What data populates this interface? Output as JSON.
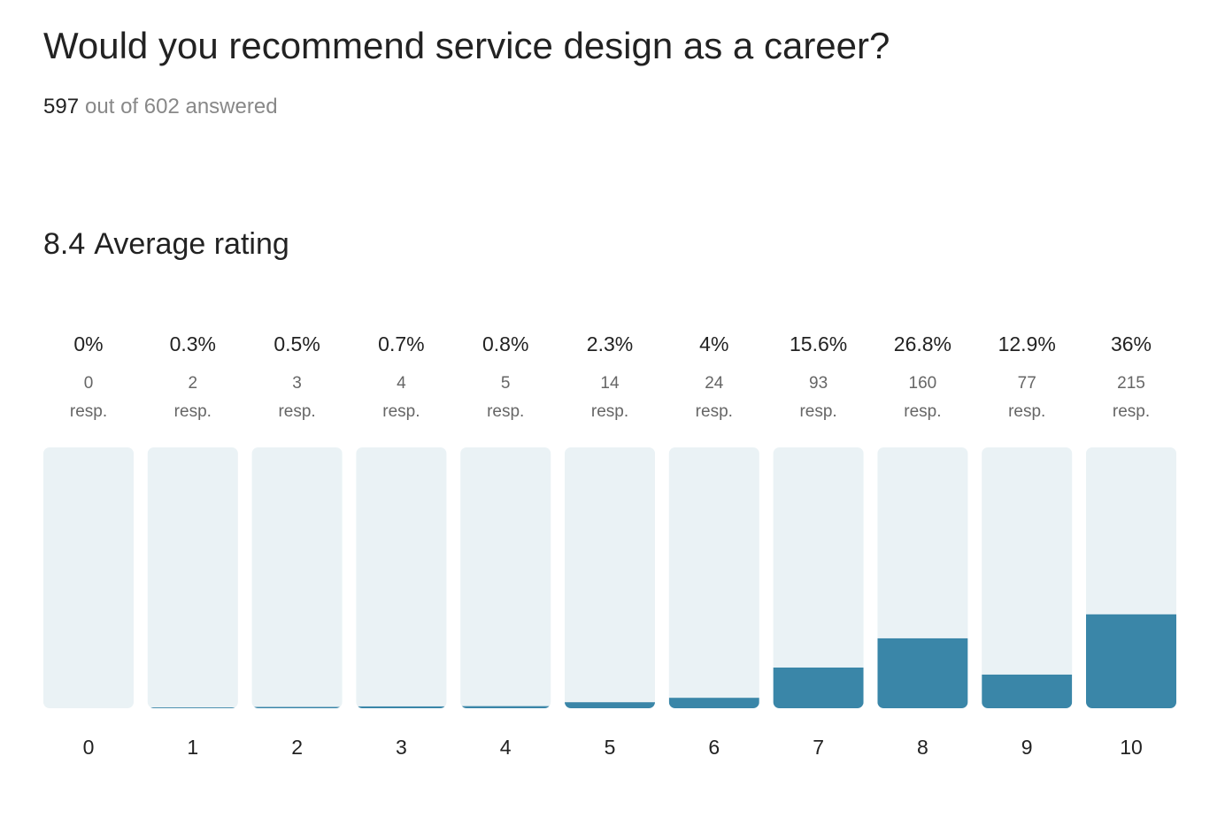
{
  "chart_data": {
    "type": "bar",
    "title": "Would you recommend service design as a career?",
    "answered_count": "597",
    "answered_text": "out of 602 answered",
    "average": 8.4,
    "average_label": "Average rating",
    "categories": [
      "0",
      "1",
      "2",
      "3",
      "4",
      "5",
      "6",
      "7",
      "8",
      "9",
      "10"
    ],
    "values": [
      0,
      0.3,
      0.5,
      0.7,
      0.8,
      2.3,
      4,
      15.6,
      26.8,
      12.9,
      36
    ],
    "value_labels": [
      "0%",
      "0.3%",
      "0.5%",
      "0.7%",
      "0.8%",
      "2.3%",
      "4%",
      "15.6%",
      "26.8%",
      "12.9%",
      "36%"
    ],
    "responses": [
      0,
      2,
      3,
      4,
      5,
      14,
      24,
      93,
      160,
      77,
      215
    ],
    "responses_unit": "resp.",
    "ylim": [
      0,
      100
    ],
    "color": "#3a86a8",
    "track_color": "#eaf2f5"
  }
}
